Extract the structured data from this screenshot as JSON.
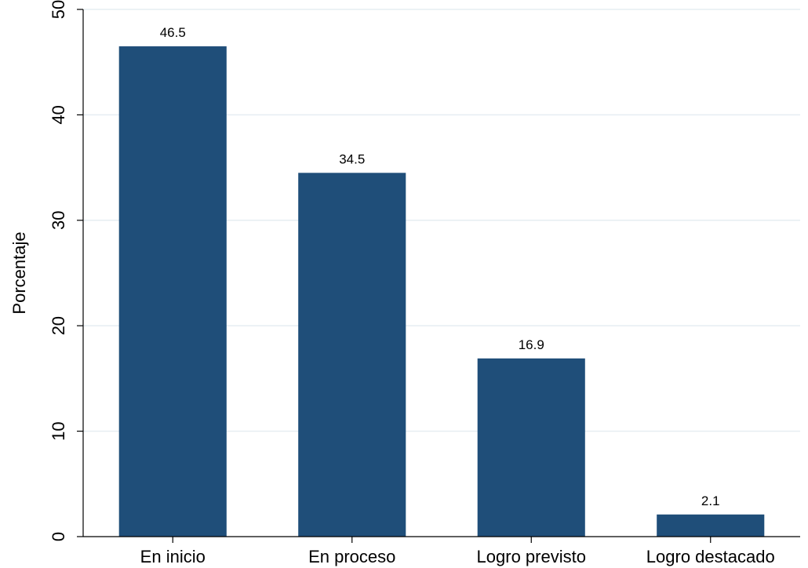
{
  "chart_data": {
    "type": "bar",
    "title": "",
    "xlabel": "",
    "ylabel": "Porcentaje",
    "categories": [
      "En inicio",
      "En proceso",
      "Logro previsto",
      "Logro destacado"
    ],
    "values": [
      46.5,
      34.5,
      16.9,
      2.1
    ],
    "value_labels": [
      "46.5",
      "34.5",
      "16.9",
      "2.1"
    ],
    "ylim": [
      0,
      50
    ],
    "yticks": [
      0,
      10,
      20,
      30,
      40,
      50
    ],
    "ytick_labels": [
      "0",
      "10",
      "20",
      "30",
      "40",
      "50"
    ],
    "grid": true,
    "legend": "none",
    "colors": {
      "bar": "#1f4e79",
      "grid": "#e6edf2",
      "axis": "#000000",
      "background": "#ffffff"
    }
  }
}
